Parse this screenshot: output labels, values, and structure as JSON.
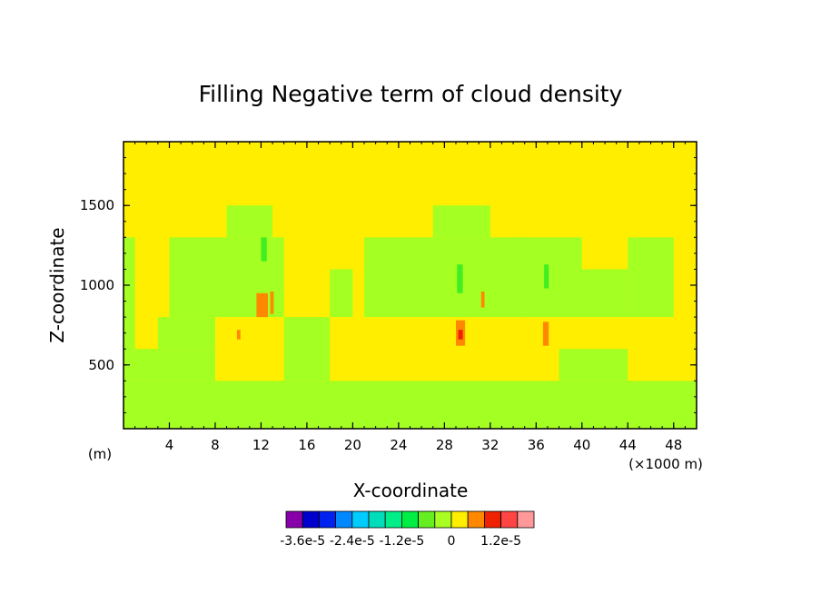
{
  "chart_data": {
    "type": "heatmap",
    "title": "Filling Negative term of cloud density",
    "xlabel": "X-coordinate",
    "ylabel": "Z-coordinate",
    "x_unit_left": "(m)",
    "x_unit_right": "(×1000 m)",
    "xlim": [
      0,
      50
    ],
    "ylim": [
      100,
      1900
    ],
    "x_ticks": [
      "4",
      "8",
      "12",
      "16",
      "20",
      "24",
      "28",
      "32",
      "36",
      "40",
      "44",
      "48"
    ],
    "y_ticks": [
      "500",
      "1000",
      "1500"
    ],
    "background_level_color": "#ffee00",
    "contour_regions": [
      {
        "x": [
          0,
          50
        ],
        "z": [
          100,
          400
        ],
        "color": "#a4ff22"
      },
      {
        "x": [
          0,
          1
        ],
        "z": [
          400,
          1300
        ],
        "color": "#a4ff22"
      },
      {
        "x": [
          1,
          8
        ],
        "z": [
          400,
          600
        ],
        "color": "#a4ff22"
      },
      {
        "x": [
          3,
          8
        ],
        "z": [
          600,
          800
        ],
        "color": "#a4ff22"
      },
      {
        "x": [
          4,
          14
        ],
        "z": [
          800,
          1300
        ],
        "color": "#a4ff22"
      },
      {
        "x": [
          9,
          13
        ],
        "z": [
          1300,
          1500
        ],
        "color": "#a4ff22"
      },
      {
        "x": [
          14,
          18
        ],
        "z": [
          400,
          800
        ],
        "color": "#a4ff22"
      },
      {
        "x": [
          18,
          20
        ],
        "z": [
          800,
          1100
        ],
        "color": "#a4ff22"
      },
      {
        "x": [
          21,
          35
        ],
        "z": [
          800,
          1300
        ],
        "color": "#a4ff22"
      },
      {
        "x": [
          27,
          32
        ],
        "z": [
          1300,
          1500
        ],
        "color": "#a4ff22"
      },
      {
        "x": [
          34,
          40
        ],
        "z": [
          1100,
          1300
        ],
        "color": "#a4ff22"
      },
      {
        "x": [
          35,
          44
        ],
        "z": [
          800,
          1100
        ],
        "color": "#a4ff22"
      },
      {
        "x": [
          38,
          44
        ],
        "z": [
          400,
          600
        ],
        "color": "#a4ff22"
      },
      {
        "x": [
          44,
          48
        ],
        "z": [
          800,
          1300
        ],
        "color": "#a4ff22"
      },
      {
        "x": [
          12,
          12.5
        ],
        "z": [
          1150,
          1300
        ],
        "color": "#40ee22"
      },
      {
        "x": [
          29.1,
          29.6
        ],
        "z": [
          950,
          1130
        ],
        "color": "#40ee22"
      },
      {
        "x": [
          36.7,
          37.1
        ],
        "z": [
          980,
          1130
        ],
        "color": "#40ee22"
      },
      {
        "x": [
          11.6,
          12.6
        ],
        "z": [
          800,
          950
        ],
        "color": "#ff8800"
      },
      {
        "x": [
          12.8,
          13.1
        ],
        "z": [
          820,
          960
        ],
        "color": "#ff8800"
      },
      {
        "x": [
          29.0,
          29.8
        ],
        "z": [
          620,
          780
        ],
        "color": "#ff8800"
      },
      {
        "x": [
          36.6,
          37.1
        ],
        "z": [
          620,
          770
        ],
        "color": "#ff8800"
      },
      {
        "x": [
          9.9,
          10.2
        ],
        "z": [
          660,
          720
        ],
        "color": "#ff8800"
      },
      {
        "x": [
          31.2,
          31.5
        ],
        "z": [
          860,
          960
        ],
        "color": "#ff8800"
      },
      {
        "x": [
          29.2,
          29.6
        ],
        "z": [
          660,
          720
        ],
        "color": "#ee2200"
      }
    ],
    "colorbar": {
      "colors": [
        "#8800aa",
        "#0000cc",
        "#0022ee",
        "#0088ff",
        "#00ccff",
        "#00ddbb",
        "#00ee88",
        "#00ee44",
        "#66ee22",
        "#aaff22",
        "#ffee00",
        "#ff8800",
        "#ee2200",
        "#ff4444",
        "#ff9999"
      ],
      "labels": [
        "-3.6e-5",
        "-2.4e-5",
        "-1.2e-5",
        "0",
        "1.2e-5"
      ]
    }
  }
}
